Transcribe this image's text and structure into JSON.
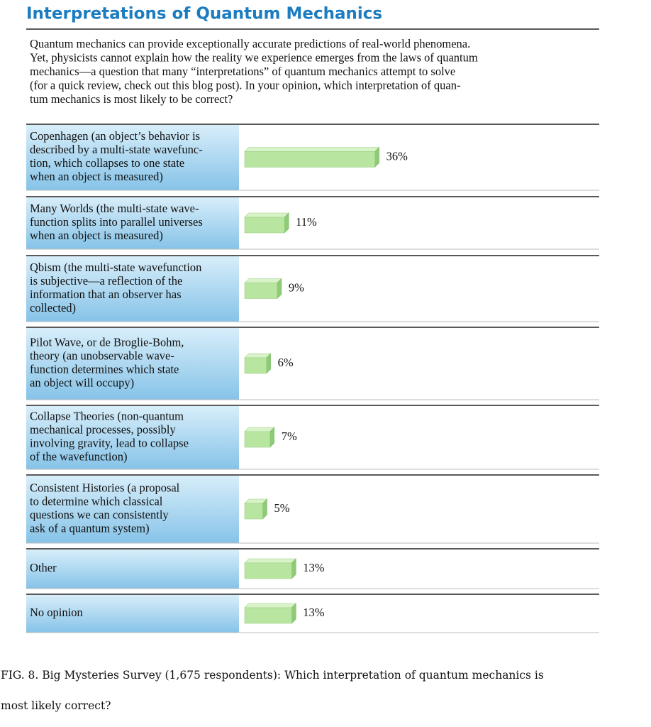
{
  "chart_data": {
    "type": "bar",
    "orientation": "horizontal",
    "title": "Interpretations of Quantum Mechanics",
    "question": [
      "Quantum mechanics can provide exceptionally accurate predictions of real-world phenomena.",
      "Yet, physicists cannot explain how the reality we experience emerges from the laws of quantum",
      "mechanics—a question that many “interpretations” of quantum mechanics attempt to solve",
      "(for a quick review, check out this blog post). In your opinion, which interpretation of quan-",
      "tum mechanics is most likely to be correct?"
    ],
    "categories": [
      [
        "Copenhagen (an object’s behavior is",
        "described by a multi-state wavefunc-",
        "tion, which collapses to one state",
        "when an object is measured)"
      ],
      [
        "Many Worlds (the multi-state wave-",
        "function splits into parallel universes",
        "when an object is measured)"
      ],
      [
        "Qbism (the multi-state wavefunction",
        "is subjective—a reflection of the",
        "information that an observer has",
        "collected)"
      ],
      [
        "Pilot Wave, or de Broglie-Bohm,",
        "theory (an unobservable wave-",
        "function determines which state",
        "an object will occupy)"
      ],
      [
        "Collapse Theories (non-quantum",
        "mechanical processes, possibly",
        "involving gravity, lead to collapse",
        "of the wavefunction)"
      ],
      [
        "Consistent Histories (a proposal",
        "to determine which classical",
        "questions we can consistently",
        "ask of a quantum system)"
      ],
      [
        "Other"
      ],
      [
        "No opinion"
      ]
    ],
    "values": [
      36,
      11,
      9,
      6,
      7,
      5,
      13,
      13
    ],
    "value_labels": [
      "36%",
      "11%",
      "9%",
      "6%",
      "7%",
      "5%",
      "13%",
      "13%"
    ],
    "color": "#b8e6a0",
    "caption": [
      "FIG. 8. Big Mysteries Survey (1,675 respondents): Which interpretation of quantum mechanics is",
      "most likely correct?"
    ]
  }
}
